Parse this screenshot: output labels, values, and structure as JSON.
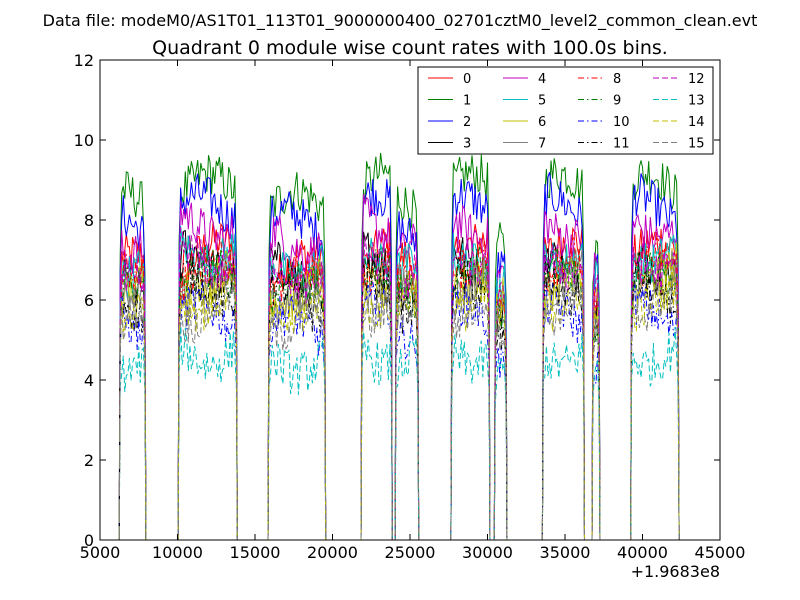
{
  "suptitle": "Data file: modeM0/AS1T01_113T01_9000000400_02701cztM0_level2_common_clean.evt",
  "title": "Quadrant 0 module wise count rates with 100.0s bins.",
  "offset_label": "+1.9683e8",
  "chart_data": {
    "type": "line",
    "title": "Quadrant 0 module wise count rates with 100.0s bins.",
    "xlabel": "",
    "ylabel": "",
    "xlim": [
      5000,
      45000
    ],
    "ylim": [
      0,
      12
    ],
    "x_offset": 196830000,
    "xticks": [
      5000,
      10000,
      15000,
      20000,
      25000,
      30000,
      35000,
      40000,
      45000
    ],
    "xtick_labels": [
      "5000",
      "10000",
      "15000",
      "20000",
      "25000",
      "30000",
      "35000",
      "40000",
      "45000"
    ],
    "yticks": [
      0,
      2,
      4,
      6,
      8,
      10,
      12
    ],
    "ytick_labels": [
      "0",
      "2",
      "4",
      "6",
      "8",
      "10",
      "12"
    ],
    "grid": false,
    "legend_position": "top-right",
    "legend_columns": 4,
    "segments": [
      [
        6300,
        7900
      ],
      [
        10100,
        13800
      ],
      [
        15900,
        19500
      ],
      [
        21900,
        23800
      ],
      [
        24100,
        25500
      ],
      [
        27700,
        30100
      ],
      [
        30500,
        31200
      ],
      [
        33600,
        36200
      ],
      [
        36800,
        37200
      ],
      [
        39300,
        42300
      ]
    ],
    "series": [
      {
        "name": "0",
        "color": "#ff0000",
        "dash": "solid",
        "level": 6.8
      },
      {
        "name": "1",
        "color": "#008000",
        "dash": "solid",
        "level": 8.4
      },
      {
        "name": "2",
        "color": "#0000ff",
        "dash": "solid",
        "level": 7.9
      },
      {
        "name": "3",
        "color": "#000000",
        "dash": "solid",
        "level": 6.6
      },
      {
        "name": "4",
        "color": "#bf00bf",
        "dash": "solid",
        "level": 7.5
      },
      {
        "name": "5",
        "color": "#00bfbf",
        "dash": "solid",
        "level": 6.9
      },
      {
        "name": "6",
        "color": "#bfbf00",
        "dash": "solid",
        "level": 6.3
      },
      {
        "name": "7",
        "color": "#808080",
        "dash": "solid",
        "level": 6.1
      },
      {
        "name": "8",
        "color": "#ff0000",
        "dash": "dashdot",
        "level": 6.4
      },
      {
        "name": "9",
        "color": "#008000",
        "dash": "dashdot",
        "level": 6.2
      },
      {
        "name": "10",
        "color": "#0000ff",
        "dash": "dashdot",
        "level": 5.3
      },
      {
        "name": "11",
        "color": "#000000",
        "dash": "dashdot",
        "level": 6.0
      },
      {
        "name": "12",
        "color": "#bf00bf",
        "dash": "dashed",
        "level": 6.7
      },
      {
        "name": "13",
        "color": "#00bfbf",
        "dash": "dashed",
        "level": 4.5
      },
      {
        "name": "14",
        "color": "#bfbf00",
        "dash": "dashed",
        "level": 5.8
      },
      {
        "name": "15",
        "color": "#808080",
        "dash": "dashed",
        "level": 5.5
      }
    ]
  }
}
